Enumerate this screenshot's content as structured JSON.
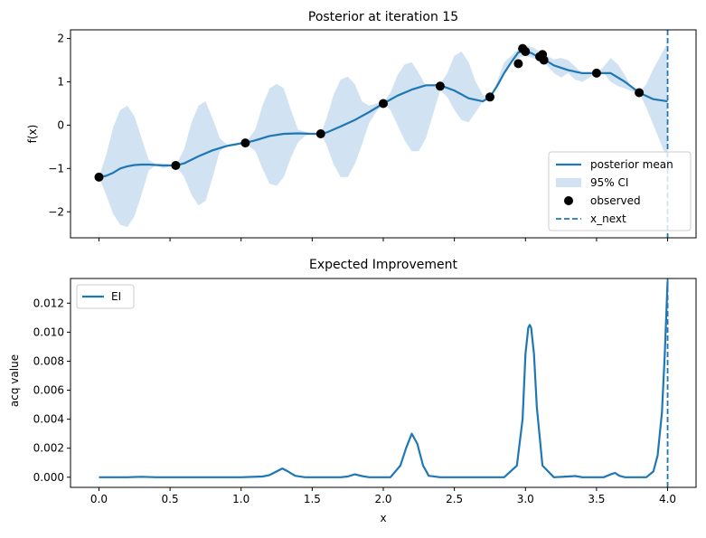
{
  "chart_data": [
    {
      "type": "line",
      "title": "Posterior at iteration 15",
      "xlabel": "",
      "ylabel": "f(x)",
      "xlim": [
        -0.2,
        4.2
      ],
      "ylim": [
        -2.6,
        2.2
      ],
      "xticks": [
        0.0,
        0.5,
        1.0,
        1.5,
        2.0,
        2.5,
        3.0,
        3.5,
        4.0
      ],
      "yticks": [
        -2,
        -1,
        0,
        1,
        2
      ],
      "ytick_labels": [
        "−2",
        "−1",
        "0",
        "1",
        "2"
      ],
      "grid": false,
      "legend_location": "lower-right",
      "legend": [
        "posterior mean",
        "95% CI",
        "observed",
        "x_next"
      ],
      "colors": {
        "mean": "#1f77b4",
        "ci": "#c6dbef",
        "observed": "#000000",
        "x_next": "#1f77b4"
      },
      "series": [
        {
          "name": "posterior mean",
          "x": [
            0.0,
            0.05,
            0.1,
            0.15,
            0.2,
            0.25,
            0.3,
            0.35,
            0.4,
            0.45,
            0.5,
            0.54,
            0.6,
            0.7,
            0.8,
            0.9,
            1.0,
            1.03,
            1.1,
            1.2,
            1.3,
            1.4,
            1.5,
            1.56,
            1.6,
            1.7,
            1.8,
            1.9,
            2.0,
            2.1,
            2.2,
            2.3,
            2.4,
            2.5,
            2.6,
            2.7,
            2.75,
            2.8,
            2.85,
            2.9,
            2.95,
            3.0,
            3.05,
            3.1,
            3.15,
            3.2,
            3.3,
            3.4,
            3.5,
            3.6,
            3.7,
            3.8,
            3.9,
            4.0
          ],
          "y": [
            -1.2,
            -1.17,
            -1.1,
            -1.0,
            -0.95,
            -0.92,
            -0.91,
            -0.91,
            -0.92,
            -0.93,
            -0.93,
            -0.93,
            -0.88,
            -0.72,
            -0.58,
            -0.48,
            -0.42,
            -0.41,
            -0.35,
            -0.25,
            -0.2,
            -0.19,
            -0.2,
            -0.2,
            -0.17,
            -0.03,
            0.12,
            0.3,
            0.5,
            0.68,
            0.82,
            0.92,
            0.92,
            0.8,
            0.62,
            0.55,
            0.65,
            0.9,
            1.2,
            1.45,
            1.68,
            1.72,
            1.65,
            1.55,
            1.48,
            1.38,
            1.27,
            1.2,
            1.2,
            1.2,
            1.0,
            0.75,
            0.6,
            0.55
          ]
        },
        {
          "name": "95% CI",
          "x": [
            0.0,
            0.05,
            0.1,
            0.15,
            0.2,
            0.25,
            0.3,
            0.35,
            0.4,
            0.45,
            0.5,
            0.54,
            0.6,
            0.65,
            0.7,
            0.75,
            0.8,
            0.85,
            0.9,
            0.95,
            1.0,
            1.03,
            1.1,
            1.15,
            1.2,
            1.25,
            1.3,
            1.35,
            1.4,
            1.45,
            1.5,
            1.56,
            1.6,
            1.65,
            1.7,
            1.75,
            1.8,
            1.85,
            1.9,
            1.95,
            2.0,
            2.05,
            2.1,
            2.15,
            2.2,
            2.25,
            2.3,
            2.35,
            2.4,
            2.45,
            2.5,
            2.55,
            2.6,
            2.65,
            2.7,
            2.75,
            2.8,
            2.85,
            2.9,
            2.95,
            3.0,
            3.05,
            3.1,
            3.15,
            3.2,
            3.25,
            3.3,
            3.35,
            3.4,
            3.45,
            3.5,
            3.55,
            3.6,
            3.65,
            3.7,
            3.75,
            3.8,
            3.85,
            3.9,
            3.95,
            4.0
          ],
          "lower": [
            -1.2,
            -1.6,
            -2.05,
            -2.3,
            -2.35,
            -2.1,
            -1.6,
            -1.05,
            -0.92,
            -1.0,
            -0.95,
            -0.93,
            -1.2,
            -1.6,
            -1.85,
            -1.75,
            -1.2,
            -0.6,
            -0.48,
            -0.45,
            -0.42,
            -0.41,
            -0.6,
            -1.0,
            -1.35,
            -1.4,
            -1.2,
            -0.75,
            -0.4,
            -0.25,
            -0.2,
            -0.2,
            -0.45,
            -0.9,
            -1.2,
            -1.2,
            -0.9,
            -0.45,
            0.05,
            0.3,
            0.5,
            0.35,
            0.0,
            -0.35,
            -0.6,
            -0.6,
            -0.3,
            0.25,
            0.8,
            0.65,
            0.35,
            0.12,
            0.07,
            0.3,
            0.55,
            0.65,
            0.9,
            1.2,
            1.45,
            1.55,
            1.6,
            1.55,
            1.5,
            1.38,
            1.2,
            1.1,
            1.2,
            1.05,
            1.0,
            1.1,
            1.2,
            1.2,
            1.0,
            0.9,
            0.85,
            0.78,
            0.75,
            0.4,
            0.0,
            -0.4,
            -0.8
          ],
          "upper": [
            -1.2,
            -0.7,
            -0.05,
            0.35,
            0.45,
            0.2,
            -0.3,
            -0.8,
            -0.9,
            -0.88,
            -0.9,
            -0.93,
            -0.55,
            0.05,
            0.45,
            0.55,
            0.15,
            -0.3,
            -0.45,
            -0.42,
            -0.42,
            -0.41,
            -0.1,
            0.45,
            0.85,
            0.95,
            0.85,
            0.35,
            -0.1,
            -0.15,
            -0.2,
            -0.2,
            0.15,
            0.7,
            1.05,
            1.12,
            0.95,
            0.55,
            0.45,
            0.5,
            0.52,
            0.75,
            1.15,
            1.4,
            1.45,
            1.2,
            0.9,
            0.95,
            0.95,
            1.2,
            1.6,
            1.7,
            1.45,
            1.0,
            0.7,
            0.65,
            1.0,
            1.45,
            1.6,
            1.75,
            1.85,
            1.8,
            1.7,
            1.6,
            1.52,
            1.55,
            1.5,
            1.35,
            1.2,
            1.2,
            1.2,
            1.35,
            1.55,
            1.4,
            1.15,
            0.85,
            0.75,
            0.95,
            1.3,
            1.6,
            1.9
          ]
        }
      ],
      "observed": {
        "x": [
          0.0,
          0.54,
          1.03,
          1.56,
          2.0,
          2.4,
          2.75,
          2.95,
          2.98,
          3.0,
          3.1,
          3.12,
          3.13,
          3.5,
          3.8
        ],
        "y": [
          -1.2,
          -0.93,
          -0.41,
          -0.2,
          0.5,
          0.9,
          0.65,
          1.42,
          1.77,
          1.7,
          1.58,
          1.63,
          1.5,
          1.2,
          0.75
        ]
      },
      "x_next": 4.0
    },
    {
      "type": "line",
      "title": "Expected Improvement",
      "xlabel": "x",
      "ylabel": "acq value",
      "xlim": [
        -0.2,
        4.2
      ],
      "ylim": [
        -0.0007,
        0.0137
      ],
      "xticks": [
        0.0,
        0.5,
        1.0,
        1.5,
        2.0,
        2.5,
        3.0,
        3.5,
        4.0
      ],
      "yticks": [
        0.0,
        0.002,
        0.004,
        0.006,
        0.008,
        0.01,
        0.012
      ],
      "ytick_labels": [
        "0.000",
        "0.002",
        "0.004",
        "0.006",
        "0.008",
        "0.010",
        "0.012"
      ],
      "grid": false,
      "legend_location": "top-left",
      "legend": [
        "EI"
      ],
      "colors": {
        "ei": "#1f77b4",
        "x_next": "#1f77b4"
      },
      "series": [
        {
          "name": "EI",
          "x": [
            0.0,
            0.2,
            0.3,
            0.4,
            0.8,
            1.0,
            1.15,
            1.2,
            1.25,
            1.29,
            1.33,
            1.38,
            1.45,
            1.7,
            1.75,
            1.8,
            1.85,
            1.9,
            2.05,
            2.12,
            2.16,
            2.2,
            2.24,
            2.28,
            2.32,
            2.4,
            2.85,
            2.94,
            2.98,
            3.0,
            3.02,
            3.03,
            3.04,
            3.06,
            3.08,
            3.12,
            3.2,
            3.3,
            3.35,
            3.4,
            3.55,
            3.6,
            3.63,
            3.66,
            3.7,
            3.85,
            3.9,
            3.93,
            3.96,
            3.98,
            4.0
          ],
          "y": [
            0.0,
            0.0,
            3e-05,
            0.0,
            0.0,
            0.0,
            5e-05,
            0.00015,
            0.0004,
            0.0006,
            0.0004,
            0.0001,
            0.0,
            0.0,
            5e-05,
            0.0002,
            8e-05,
            0.0,
            0.0,
            0.0008,
            0.002,
            0.003,
            0.0023,
            0.0008,
            0.0001,
            0.0,
            0.0,
            0.0008,
            0.004,
            0.0085,
            0.0103,
            0.0105,
            0.0103,
            0.0085,
            0.0048,
            0.0008,
            0.0,
            5e-05,
            8e-05,
            0.0,
            0.0,
            0.0002,
            0.0003,
            0.0001,
            0.0,
            0.0,
            0.0004,
            0.0015,
            0.0045,
            0.0085,
            0.0135
          ]
        }
      ],
      "x_next": 4.0
    }
  ]
}
